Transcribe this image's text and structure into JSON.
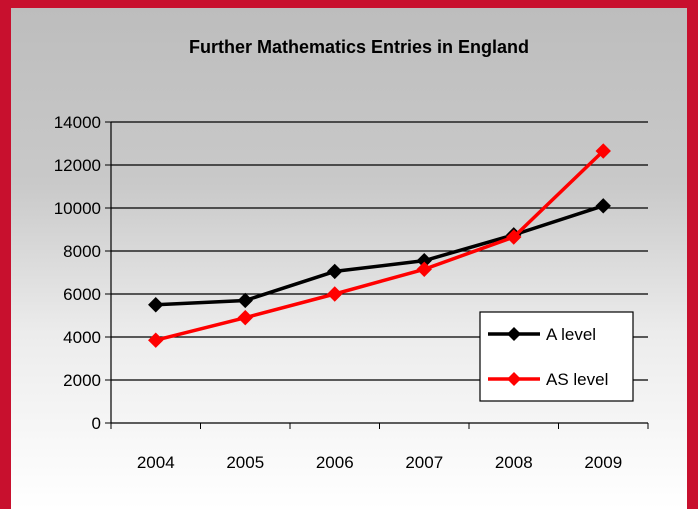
{
  "chart_data": {
    "type": "line",
    "title": "Further Mathematics Entries in England",
    "xlabel": "",
    "ylabel": "",
    "categories": [
      "2004",
      "2005",
      "2006",
      "2007",
      "2008",
      "2009"
    ],
    "ylim": [
      0,
      14000
    ],
    "yticks": [
      "0",
      "2000",
      "4000",
      "6000",
      "8000",
      "10000",
      "12000",
      "14000"
    ],
    "grid": true,
    "legend_position": "bottom-right",
    "series": [
      {
        "name": "A level",
        "color": "#000000",
        "values": [
          5500,
          5700,
          7050,
          7550,
          8750,
          10100
        ]
      },
      {
        "name": "AS level",
        "color": "#ff0000",
        "values": [
          3850,
          4900,
          6000,
          7150,
          8650,
          12650
        ]
      }
    ]
  },
  "colors": {
    "frame": "#c8102e",
    "grid": "#000000"
  }
}
